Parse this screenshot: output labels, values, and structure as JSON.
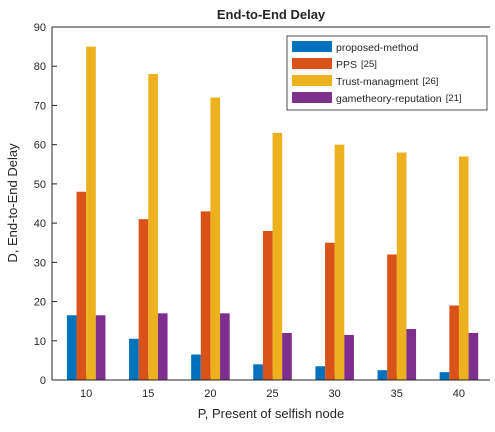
{
  "chart_data": {
    "type": "bar",
    "title": "End-to-End Delay",
    "xlabel": "P, Present of selfish node",
    "ylabel": "D, End-to-End Delay",
    "ylim": [
      0,
      90
    ],
    "yticks": [
      0,
      10,
      20,
      30,
      40,
      50,
      60,
      70,
      80,
      90
    ],
    "categories": [
      "10",
      "15",
      "20",
      "25",
      "30",
      "35",
      "40"
    ],
    "grid": false,
    "legend_position": "top-right",
    "series": [
      {
        "name": "proposed-method",
        "color": "#0072BD",
        "values": [
          16.5,
          10.5,
          6.5,
          4,
          3.5,
          2.5,
          2
        ]
      },
      {
        "name": "PPS",
        "cite": "[25]",
        "color": "#D95319",
        "values": [
          48,
          41,
          43,
          38,
          35,
          32,
          19
        ]
      },
      {
        "name": "Trust-managment",
        "cite": "[26]",
        "color": "#EDB120",
        "values": [
          85,
          78,
          72,
          63,
          60,
          58,
          57
        ]
      },
      {
        "name": "gametheory-reputation",
        "cite": "[21]",
        "color": "#7E2F8E",
        "values": [
          16.5,
          17,
          17,
          12,
          11.5,
          13,
          12
        ]
      }
    ]
  }
}
